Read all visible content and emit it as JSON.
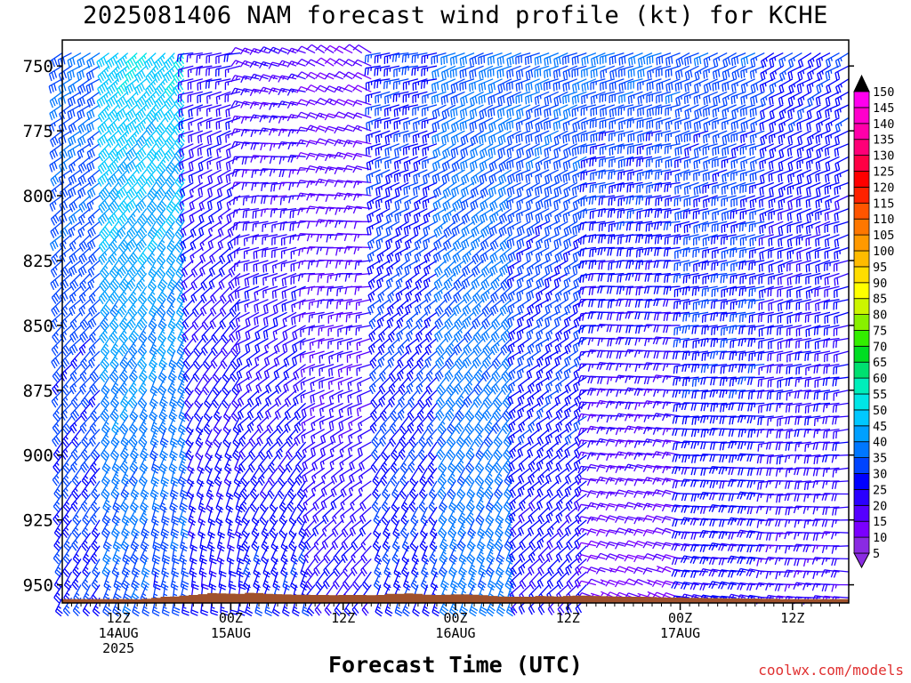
{
  "header": {
    "title": "2025081406 NAM forecast wind profile (kt) for KCHE"
  },
  "footer": {
    "xlabel": "Forecast Time (UTC)",
    "credit": "coolwx.com/models"
  },
  "chart_data": {
    "type": "wind_barb_profile",
    "title": "2025081406 NAM forecast wind profile (kt) for KCHE",
    "xlabel": "Forecast Time (UTC)",
    "ylabel": "",
    "y_axis": {
      "reversed": true,
      "ylim": [
        957,
        740
      ],
      "ticks": [
        750,
        775,
        800,
        825,
        850,
        875,
        900,
        925,
        950
      ]
    },
    "x_axis": {
      "xlim_hours": [
        0,
        84
      ],
      "step_hours": 1,
      "ticks": [
        {
          "hour": 6,
          "line1": "12Z",
          "line2": "14AUG",
          "line3": "2025"
        },
        {
          "hour": 18,
          "line1": "00Z",
          "line2": "15AUG",
          "line3": ""
        },
        {
          "hour": 30,
          "line1": "12Z",
          "line2": "",
          "line3": ""
        },
        {
          "hour": 42,
          "line1": "00Z",
          "line2": "16AUG",
          "line3": ""
        },
        {
          "hour": 54,
          "line1": "12Z",
          "line2": "",
          "line3": ""
        },
        {
          "hour": 66,
          "line1": "00Z",
          "line2": "17AUG",
          "line3": ""
        },
        {
          "hour": 78,
          "line1": "12Z",
          "line2": "",
          "line3": ""
        }
      ]
    },
    "colorbar": {
      "labels": [
        "5",
        "10",
        "15",
        "20",
        "25",
        "30",
        "35",
        "40",
        "45",
        "50",
        "55",
        "60",
        "65",
        "70",
        "75",
        "80",
        "85",
        "90",
        "95",
        "100",
        "105",
        "110",
        "115",
        "120",
        "125",
        "130",
        "135",
        "140",
        "145",
        "150"
      ],
      "colors": [
        "#8a2be2",
        "#7b00ff",
        "#5500ff",
        "#2a00ff",
        "#0000ff",
        "#0044ff",
        "#0077ff",
        "#00a0ff",
        "#00c8ff",
        "#00e6e6",
        "#00eebb",
        "#00e070",
        "#00dd22",
        "#33ee00",
        "#88f000",
        "#ccf500",
        "#ffff00",
        "#ffdd00",
        "#ffbb00",
        "#ff9900",
        "#ff7700",
        "#ff5500",
        "#ff2200",
        "#ff0000",
        "#ff0044",
        "#ff0077",
        "#ff00aa",
        "#ff00cc",
        "#ff00ee",
        "#ff33ff"
      ]
    },
    "terrain": {
      "color": "#a0522d",
      "surface_mb": [
        955.5,
        955.5,
        955.5,
        955.5,
        955.5,
        955.5,
        955.5,
        955.5,
        955.6,
        955.4,
        955,
        954.6,
        954.5,
        954.2,
        953.9,
        953.6,
        953.2,
        953.3,
        953.4,
        953.5,
        953.1,
        953.2,
        953.5,
        953.6,
        953.7,
        953.8,
        953.8,
        953.9,
        953.9,
        954,
        953.9,
        953.9,
        953.9,
        954,
        953.9,
        953.5,
        953.5,
        953.3,
        953.5,
        953.8,
        953.9,
        953.8,
        953.7,
        953.7,
        953.8,
        954,
        954.3,
        954.5,
        954.6,
        954.6,
        954.6,
        954.3,
        954.4,
        954.5,
        954.3,
        954.2,
        954.2,
        954.3,
        954.4,
        954.5,
        954.6,
        954.6,
        954.6,
        954.7,
        954.8,
        954.9,
        954.9,
        955,
        955,
        955.1,
        955.1,
        955.2,
        955.2,
        955.3,
        955.3,
        955.4,
        955.4,
        955.5,
        955.5,
        955.5,
        955.5,
        955.5,
        955.5,
        955.5,
        955.5
      ]
    },
    "levels_mb": [
      745,
      750,
      755,
      760,
      765,
      770,
      775,
      780,
      785,
      790,
      795,
      800,
      805,
      810,
      815,
      820,
      825,
      830,
      835,
      840,
      845,
      850,
      855,
      860,
      865,
      870,
      875,
      880,
      885,
      890,
      895,
      900,
      905,
      910,
      915,
      920,
      925,
      930,
      935,
      940,
      945,
      950,
      955
    ],
    "series": [
      {
        "hours": [
          0,
          4
        ],
        "dir_top": 240,
        "dir_bot": 210,
        "spd_top": 30,
        "spd_bot": 24
      },
      {
        "hours": [
          5,
          9
        ],
        "dir_top": 230,
        "dir_bot": 200,
        "spd_top": 44,
        "spd_bot": 28
      },
      {
        "hours": [
          10,
          13
        ],
        "dir_top": 225,
        "dir_bot": 190,
        "spd_top": 44,
        "spd_bot": 26
      },
      {
        "hours": [
          14,
          19
        ],
        "dir_top": 260,
        "dir_bot": 185,
        "spd_top": 18,
        "spd_bot": 22
      },
      {
        "hours": [
          20,
          26
        ],
        "dir_top": 290,
        "dir_bot": 195,
        "spd_top": 14,
        "spd_bot": 24
      },
      {
        "hours": [
          27,
          33
        ],
        "dir_top": 300,
        "dir_bot": 215,
        "spd_top": 10,
        "spd_bot": 20
      },
      {
        "hours": [
          34,
          40
        ],
        "dir_top": 260,
        "dir_bot": 200,
        "spd_top": 25,
        "spd_bot": 24
      },
      {
        "hours": [
          41,
          48
        ],
        "dir_top": 250,
        "dir_bot": 200,
        "spd_top": 30,
        "spd_bot": 32
      },
      {
        "hours": [
          49,
          56
        ],
        "dir_top": 250,
        "dir_bot": 225,
        "spd_top": 30,
        "spd_bot": 20
      },
      {
        "hours": [
          57,
          66
        ],
        "dir_top": 250,
        "dir_bot": 290,
        "spd_top": 30,
        "spd_bot": 8
      },
      {
        "hours": [
          67,
          75
        ],
        "dir_top": 245,
        "dir_bot": 280,
        "spd_top": 28,
        "spd_bot": 20
      },
      {
        "hours": [
          76,
          84
        ],
        "dir_top": 240,
        "dir_bot": 275,
        "spd_top": 24,
        "spd_bot": 16
      }
    ]
  }
}
